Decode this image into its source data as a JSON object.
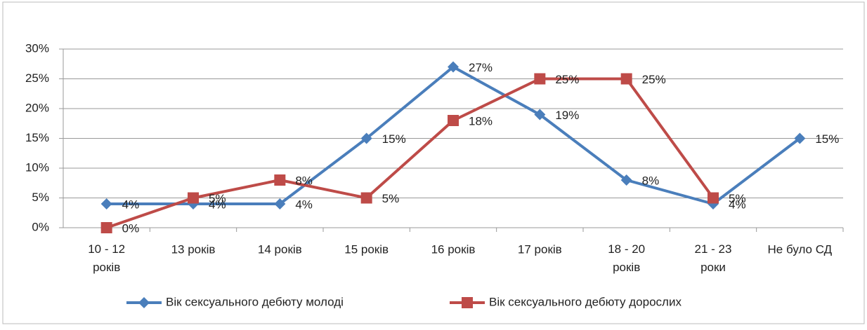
{
  "chart_data": {
    "type": "line",
    "categories": [
      "10 - 12 років",
      "13 років",
      "14 років",
      "15 років",
      "16 років",
      "17 років",
      "18 - 20 років",
      "21 - 23 роки",
      "Не було СД"
    ],
    "series": [
      {
        "name": "Вік сексуального дебюту  молоді",
        "color": "#4a7ebb",
        "marker": "diamond",
        "values": [
          4,
          4,
          4,
          15,
          27,
          19,
          8,
          4,
          15
        ],
        "value_labels": [
          "4%",
          "4%",
          "4%",
          "15%",
          "27%",
          "19%",
          "8%",
          "4%",
          "15%"
        ]
      },
      {
        "name": "Вік сексуального дебюту  дорослих",
        "color": "#be4b48",
        "marker": "square",
        "values": [
          0,
          5,
          8,
          5,
          18,
          25,
          25,
          5,
          null
        ],
        "value_labels": [
          "0%",
          "5%",
          "8%",
          "5%",
          "18%",
          "25%",
          "25%",
          "5%",
          null
        ]
      }
    ],
    "ylim": [
      0,
      30
    ],
    "yticks": [
      {
        "value": 0,
        "label": "0%"
      },
      {
        "value": 5,
        "label": "5%"
      },
      {
        "value": 10,
        "label": "10%"
      },
      {
        "value": 15,
        "label": "15%"
      },
      {
        "value": 20,
        "label": "20%"
      },
      {
        "value": 25,
        "label": "25%"
      },
      {
        "value": 30,
        "label": "30%"
      }
    ],
    "grid": true,
    "legend": "bottom"
  }
}
